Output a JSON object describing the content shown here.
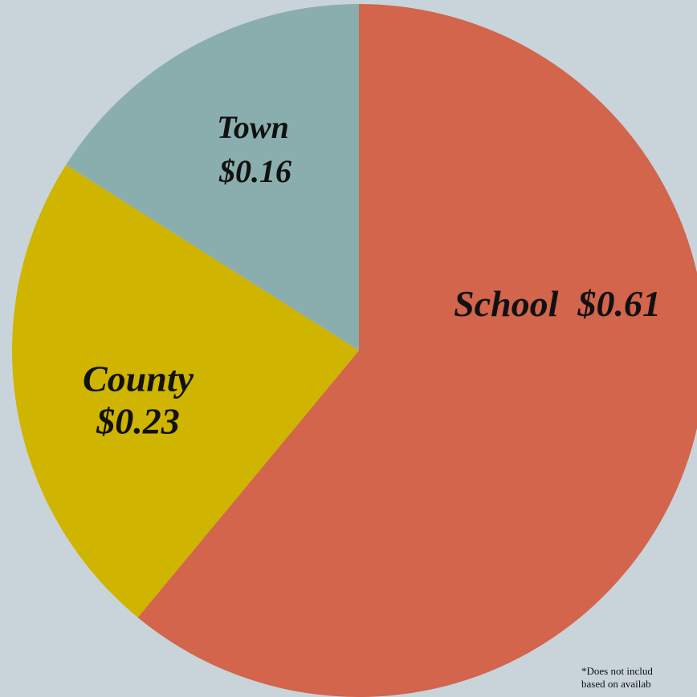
{
  "chart_data": {
    "type": "pie",
    "categories": [
      "School",
      "County",
      "Town"
    ],
    "values": [
      0.61,
      0.23,
      0.16
    ],
    "value_labels": [
      "$0.61",
      "$0.23",
      "$0.16"
    ],
    "colors": [
      "#d2654b",
      "#cfb400",
      "#8aaeae"
    ],
    "footnote": [
      "*Does not includ",
      "based on availab"
    ]
  }
}
